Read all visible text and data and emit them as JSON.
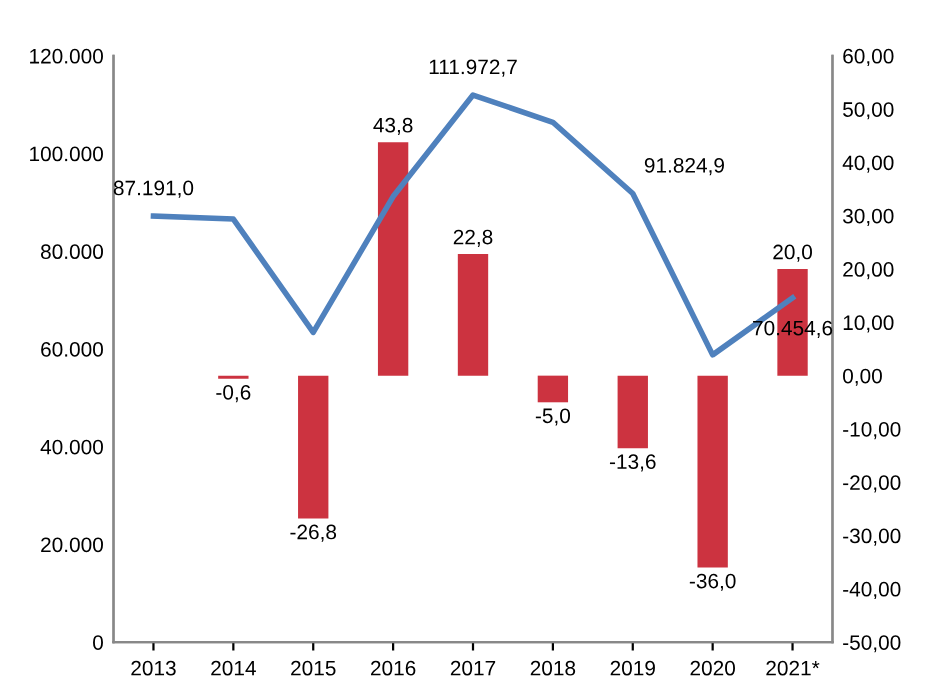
{
  "chart_data": {
    "type": "bar",
    "categories": [
      "2013",
      "2014",
      "2015",
      "2016",
      "2017",
      "2018",
      "2019",
      "2020",
      "2021*"
    ],
    "series": [
      {
        "axis": "y2",
        "color": "#cc3340",
        "values": [
          null,
          -0.6,
          -26.8,
          43.8,
          22.8,
          -5.0,
          -13.6,
          -36.0,
          20.0
        ],
        "value_labels": [
          null,
          "-0,6",
          "-26,8",
          "43,8",
          "22,8",
          "-5,0",
          "-13,6",
          "-36,0",
          "20,0"
        ]
      },
      {
        "type": "line",
        "axis": "y",
        "color": "#4f81bd",
        "values": [
          87191.0,
          86600,
          63400,
          91200,
          111972.7,
          106400,
          91824.9,
          58800,
          70454.6
        ],
        "value_labels": [
          "87.191,0",
          null,
          null,
          null,
          "111.972,7",
          null,
          "91.824,9",
          null,
          "70.454,6"
        ]
      }
    ],
    "ylim": [
      0,
      120000
    ],
    "yticks": [
      {
        "value": 0,
        "label": "0"
      },
      {
        "value": 20000,
        "label": "20.000"
      },
      {
        "value": 40000,
        "label": "40.000"
      },
      {
        "value": 60000,
        "label": "60.000"
      },
      {
        "value": 80000,
        "label": "80.000"
      },
      {
        "value": 100000,
        "label": "100.000"
      },
      {
        "value": 120000,
        "label": "120.000"
      }
    ],
    "y2lim": [
      -50,
      60
    ],
    "y2ticks": [
      {
        "value": -50,
        "label": "-50,00"
      },
      {
        "value": -40,
        "label": "-40,00"
      },
      {
        "value": -30,
        "label": "-30,00"
      },
      {
        "value": -20,
        "label": "-20,00"
      },
      {
        "value": -10,
        "label": "-10,00"
      },
      {
        "value": 0,
        "label": "0,00"
      },
      {
        "value": 10,
        "label": "10,00"
      },
      {
        "value": 20,
        "label": "20,00"
      },
      {
        "value": 30,
        "label": "30,00"
      },
      {
        "value": 40,
        "label": "40,00"
      },
      {
        "value": 50,
        "label": "50,00"
      },
      {
        "value": 60,
        "label": "60,00"
      }
    ],
    "grid": false,
    "legend": false,
    "marker": "none",
    "line_style": "solid"
  }
}
